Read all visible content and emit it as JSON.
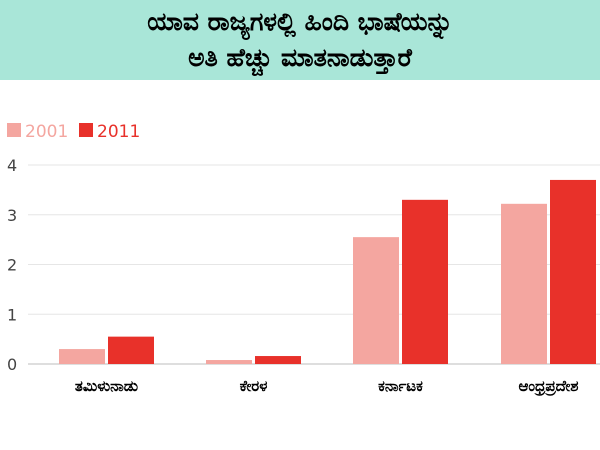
{
  "header": {
    "title_line1": "ಯಾವ ರಾಜ್ಯಗಳಲ್ಲಿ ಹಿಂದಿ ಭಾಷೆಯನ್ನು",
    "title_line2": "ಅತಿ ಹೆಚ್ಚು ಮಾತನಾಡುತ್ತಾರೆ"
  },
  "chart_data": {
    "type": "bar",
    "title": "ಯಾವ ರಾಜ್ಯಗಳಲ್ಲಿ ಹಿಂದಿ ಭಾಷೆಯನ್ನು ಅತಿ ಹೆಚ್ಚು ಮಾತನಾಡುತ್ತಾರೆ",
    "categories": [
      "ತಮಿಳುನಾಡು",
      "ಕೇರಳ",
      "ಕರ್ನಾಟಕ",
      "ಆಂಧ್ರಪ್ರದೇಶ"
    ],
    "series": [
      {
        "name": "2001",
        "color": "#f4a6a0",
        "values": [
          0.3,
          0.08,
          2.55,
          3.22
        ]
      },
      {
        "name": "2011",
        "color": "#e8312a",
        "values": [
          0.55,
          0.16,
          3.3,
          3.7
        ]
      }
    ],
    "yticks": [
      "0",
      "1",
      "2",
      "3",
      "4"
    ],
    "ylim": [
      0,
      4
    ],
    "grid": true,
    "legend": "top-left"
  }
}
